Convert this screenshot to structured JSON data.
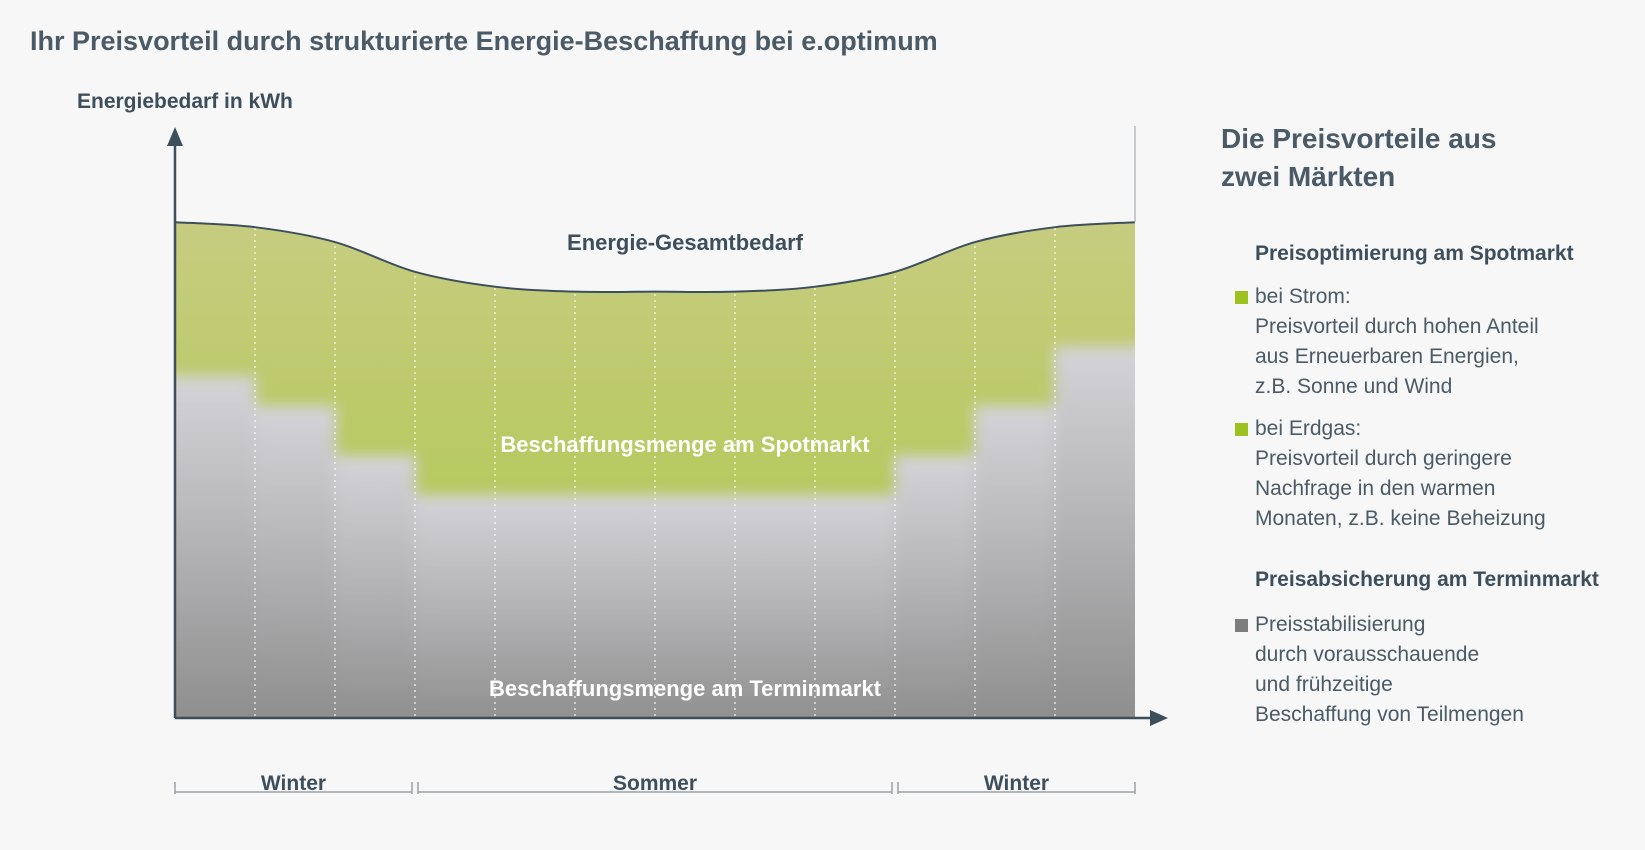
{
  "title": "Ihr Preisvorteil durch strukturierte Energie-Beschaffung bei e.optimum",
  "colors": {
    "spot": "#9dc21f",
    "spot_light": "#c8ce7e",
    "termin": "#8a8a8a",
    "termin_light": "#cfcfd3",
    "text": "#3d4f5c"
  },
  "chart_data": {
    "type": "area",
    "ylabel": "Energiebedarf in kWh",
    "xlabel": "",
    "periods": 12,
    "total_label": "Energie-Gesamtbedarf",
    "spot_label": "Beschaffungsmenge am Spotmarkt",
    "termin_label": "Beschaffungsmenge am Terminmarkt",
    "seasons": [
      {
        "label": "Winter",
        "from": 0,
        "to": 3
      },
      {
        "label": "Sommer",
        "from": 3,
        "to": 9
      },
      {
        "label": "Winter",
        "from": 9,
        "to": 12
      }
    ],
    "series": [
      {
        "name": "Energie-Gesamtbedarf",
        "values": [
          100,
          99,
          96,
          90,
          87,
          86,
          86,
          86,
          87,
          90,
          96,
          99,
          100
        ]
      },
      {
        "name": "Beschaffungsmenge am Terminmarkt",
        "values": [
          69,
          63,
          53,
          45,
          45,
          45,
          45,
          45,
          45,
          53,
          63,
          75
        ]
      }
    ],
    "ylim": [
      0,
      118
    ]
  },
  "sidebar": {
    "heading_line1": "Die Preisvorteile aus",
    "heading_line2": "zwei Märkten",
    "spot_heading": "Preisoptimierung am Spotmarkt",
    "strom_text": "bei Strom:\nPreisvorteil durch hohen Anteil\naus Erneuerbaren Energien,\nz.B. Sonne und Wind",
    "erdgas_text": "bei Erdgas:\nPreisvorteil durch geringere\nNachfrage in den warmen\nMonaten, z.B. keine Beheizung",
    "termin_heading": "Preisabsicherung am Terminmarkt",
    "termin_text": "Preisstabilisierung\ndurch vorausschauende\nund frühzeitige\nBeschaffung von Teilmengen"
  }
}
